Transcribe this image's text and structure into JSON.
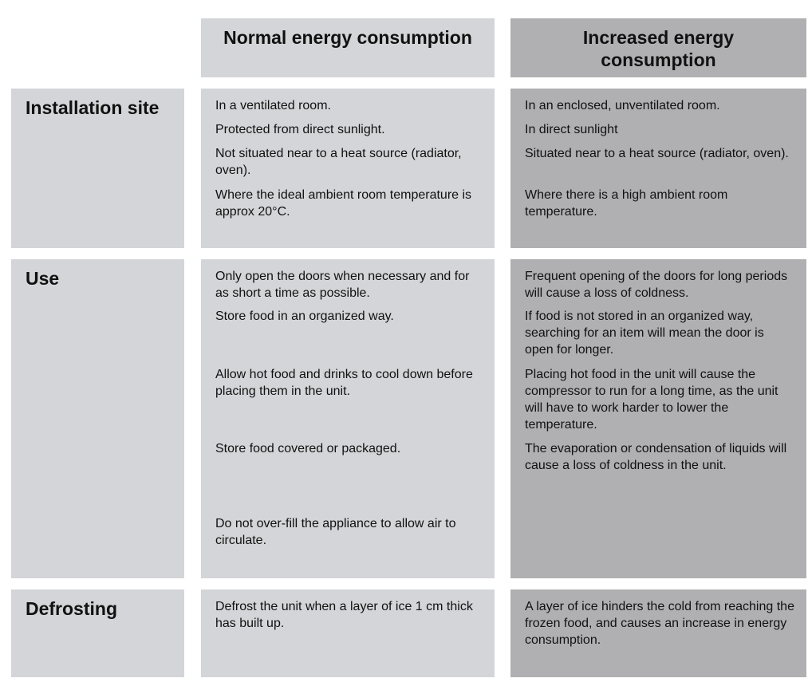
{
  "header": {
    "normal": "Normal energy consumption",
    "increased": "Increased energy consumption"
  },
  "rows": [
    {
      "label": "Installation site",
      "normal": [
        "In a ventilated room.",
        "Protected from direct sunlight.",
        "Not situated near to a heat source (radiator, oven).",
        "Where the ideal ambient room temperature is approx 20°C."
      ],
      "increased": [
        "In an enclosed, unventilated room.",
        "In direct sunlight",
        "Situated near to a heat source (radiator, oven).",
        "Where there is a high ambient room temperature."
      ]
    },
    {
      "label": "Use",
      "normal": [
        "Only open the doors when necessary and for as short a time as possible.",
        "Store food in an organized way.",
        "Allow hot food and drinks to cool down before placing them in the unit.",
        "Store food covered or packaged.",
        "Do not over-fill the appliance to allow air to circulate."
      ],
      "increased": [
        "Frequent opening of the doors for long periods will cause a loss of coldness.",
        "If food is not stored in an organized way, searching for an item will mean the door is open for longer.",
        "Placing hot food in the unit will cause the compressor to run for a long time, as the unit will have to work harder to lower the temperature.",
        "The evaporation or condensation of liquids will cause a loss of coldness in the unit."
      ]
    },
    {
      "label": "Defrosting",
      "normal": [
        "Defrost the unit when a layer of ice 1 cm thick has built up."
      ],
      "increased": [
        "A layer of ice hinders the cold from reaching the frozen food, and causes an increase in energy consumption."
      ]
    }
  ]
}
